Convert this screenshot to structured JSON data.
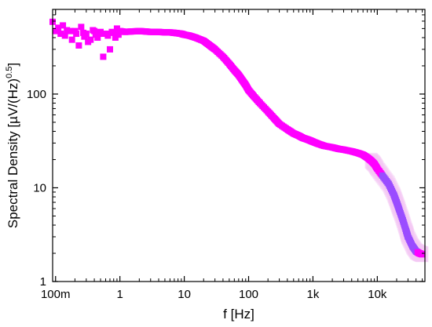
{
  "chart_data": {
    "type": "scatter",
    "title": "",
    "xlabel": "f [Hz]",
    "ylabel_main": "Spectral Density [µV/(Hz)",
    "ylabel_sup": "0.5",
    "ylabel_close": "]",
    "xscale": "log",
    "yscale": "log",
    "xlim": [
      0.09,
      55000
    ],
    "ylim": [
      1,
      800
    ],
    "grid": false,
    "legend": "none",
    "x_ticks": [
      {
        "value": 0.1,
        "label": "100m"
      },
      {
        "value": 1,
        "label": "1"
      },
      {
        "value": 10,
        "label": "10"
      },
      {
        "value": 100,
        "label": "100"
      },
      {
        "value": 1000,
        "label": "1k"
      },
      {
        "value": 10000,
        "label": "10k"
      }
    ],
    "y_ticks": [
      {
        "value": 1,
        "label": "1"
      },
      {
        "value": 10,
        "label": "10"
      },
      {
        "value": 100,
        "label": "100"
      }
    ],
    "colors": {
      "marker": "#ff00ff",
      "marker_high_freq": "#9a4cff",
      "band": "#f5c8f5",
      "axis": "#000000"
    },
    "series": [
      {
        "marker": "square",
        "x": [
          0.09,
          0.1,
          0.11,
          0.12,
          0.13,
          0.14,
          0.15,
          0.17,
          0.18,
          0.2,
          0.21,
          0.23,
          0.25,
          0.27,
          0.28,
          0.3,
          0.32,
          0.35,
          0.38,
          0.4,
          0.42,
          0.45,
          0.48,
          0.5,
          0.55,
          0.6,
          0.65,
          0.7,
          0.75,
          0.8,
          0.85,
          0.9,
          0.95,
          1,
          1.2,
          1.5,
          2,
          2.5,
          3,
          4,
          5,
          6,
          7,
          8,
          9,
          10,
          12,
          15,
          20,
          25,
          30,
          40,
          50,
          60,
          70,
          80,
          90,
          100,
          120,
          150,
          200,
          250,
          300,
          400,
          500,
          600,
          700,
          800,
          900,
          1000,
          1200,
          1500,
          2000,
          2500,
          3000,
          4000,
          5000,
          6000,
          7000,
          8000,
          9000,
          10000,
          12000,
          15000,
          18000,
          20000,
          22000,
          25000,
          28000,
          30000,
          35000,
          40000,
          45000,
          50000
        ],
        "y": [
          590,
          470,
          510,
          440,
          540,
          420,
          480,
          470,
          380,
          470,
          440,
          330,
          520,
          450,
          410,
          440,
          360,
          380,
          480,
          470,
          430,
          400,
          440,
          460,
          250,
          440,
          420,
          300,
          460,
          450,
          400,
          500,
          430,
          470,
          460,
          465,
          470,
          465,
          460,
          460,
          455,
          455,
          450,
          445,
          440,
          430,
          420,
          400,
          370,
          330,
          300,
          250,
          210,
          180,
          160,
          140,
          125,
          110,
          95,
          80,
          65,
          55,
          48,
          42,
          38,
          36,
          34,
          33,
          32,
          31,
          29.5,
          28,
          27,
          26,
          25.5,
          24.5,
          23.5,
          22.5,
          21,
          19.5,
          18,
          16,
          13.5,
          11,
          8.5,
          7,
          5.8,
          4.5,
          3.5,
          3.0,
          2.4,
          2.1,
          2.0,
          1.95
        ]
      }
    ]
  }
}
